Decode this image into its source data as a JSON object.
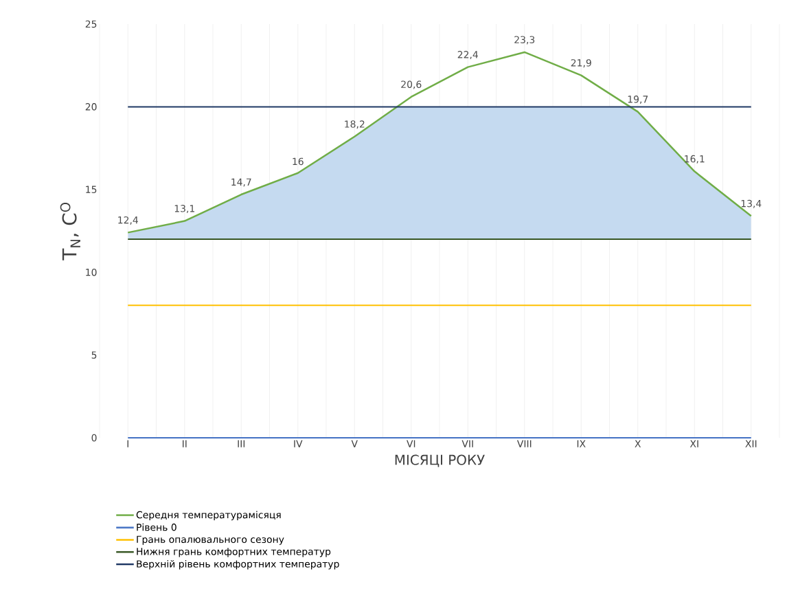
{
  "chart_data": {
    "type": "line",
    "xlabel": "МІСЯЦІ РОКУ",
    "ylabel": "T$_{N}$, C$^{O}$",
    "categories": [
      "I",
      "II",
      "III",
      "IV",
      "V",
      "VI",
      "VII",
      "VIII",
      "IX",
      "X",
      "XI",
      "XII"
    ],
    "series": [
      {
        "name": "Середня температурамісяця",
        "color": "#70ad47",
        "values": [
          12.4,
          13.1,
          14.7,
          16,
          18.2,
          20.6,
          22.4,
          23.3,
          21.9,
          19.7,
          16.1,
          13.4
        ],
        "value_labels": [
          "12,4",
          "13,1",
          "14,7",
          "16",
          "18,2",
          "20,6",
          "22,4",
          "23,3",
          "21,9",
          "19,7",
          "16,1",
          "13,4"
        ]
      },
      {
        "name": "Рівень 0",
        "color": "#4472c4",
        "values": [
          0,
          0,
          0,
          0,
          0,
          0,
          0,
          0,
          0,
          0,
          0,
          0
        ]
      },
      {
        "name": "Грань опалювального сезону",
        "color": "#ffc000",
        "values": [
          8,
          8,
          8,
          8,
          8,
          8,
          8,
          8,
          8,
          8,
          8,
          8
        ]
      },
      {
        "name": "Нижня грань комфортних температур",
        "color": "#375623",
        "values": [
          12,
          12,
          12,
          12,
          12,
          12,
          12,
          12,
          12,
          12,
          12,
          12
        ]
      },
      {
        "name": "Верхній рівень комфортних температур",
        "color": "#1f3864",
        "values": [
          20,
          20,
          20,
          20,
          20,
          20,
          20,
          20,
          20,
          20,
          20,
          20
        ]
      }
    ],
    "bands": [
      {
        "axis": "y",
        "from": 12,
        "to": 20,
        "color": "#c5daf0"
      }
    ],
    "ylim": [
      0,
      25
    ],
    "yticks": [
      0,
      5,
      10,
      15,
      20,
      25
    ],
    "grid": "x",
    "legend": "bottom",
    "marker": "none",
    "line_style": "solid"
  }
}
